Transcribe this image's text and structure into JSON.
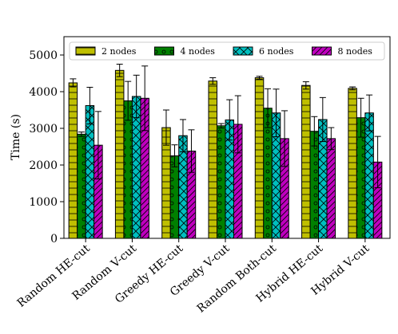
{
  "chart_data": {
    "type": "bar",
    "title": "",
    "xlabel": "",
    "ylabel": "Time (s)",
    "ylim": [
      0,
      5500
    ],
    "yticks": [
      0,
      1000,
      2000,
      3000,
      4000,
      5000
    ],
    "grid": false,
    "legend_position": "top",
    "categories": [
      "Random HE-cut",
      "Random V-cut",
      "Greedy HE-cut",
      "Greedy V-cut",
      "Random Both-cut",
      "Hybrid HE-cut",
      "Hybrid V-cut"
    ],
    "series": [
      {
        "name": "2 nodes",
        "color": "#bfbf00",
        "hatch": "horizontal",
        "values": [
          4240,
          4580,
          3020,
          4290,
          4380,
          4170,
          4090
        ],
        "errors": [
          110,
          170,
          480,
          90,
          40,
          100,
          40
        ]
      },
      {
        "name": "4 nodes",
        "color": "#008000",
        "hatch": "circles",
        "values": [
          2840,
          3750,
          2250,
          3070,
          3550,
          2920,
          3290
        ],
        "errors": [
          60,
          530,
          300,
          60,
          530,
          400,
          530
        ]
      },
      {
        "name": "6 nodes",
        "color": "#00bfbf",
        "hatch": "cross",
        "values": [
          3620,
          3870,
          2800,
          3230,
          3420,
          3240,
          3420
        ],
        "errors": [
          500,
          580,
          440,
          550,
          650,
          600,
          490
        ]
      },
      {
        "name": "8 nodes",
        "color": "#bf00bf",
        "hatch": "diagonal",
        "values": [
          2540,
          3820,
          2380,
          3110,
          2720,
          2720,
          2080
        ],
        "errors": [
          920,
          880,
          580,
          780,
          760,
          300,
          700
        ]
      }
    ]
  }
}
